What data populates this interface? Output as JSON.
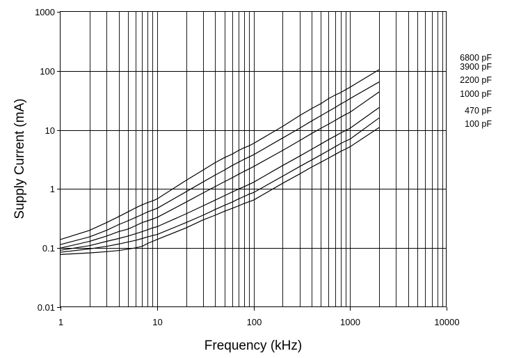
{
  "chart_data": {
    "type": "line",
    "title": "",
    "xlabel": "Frequency (kHz)",
    "ylabel": "Supply Current (mA)",
    "x_scale": "log",
    "y_scale": "log",
    "xlim": [
      1,
      10000
    ],
    "ylim": [
      0.01,
      1000
    ],
    "grid": true,
    "x_ticks": [
      1,
      10,
      100,
      1000,
      10000
    ],
    "y_ticks": [
      0.01,
      0.1,
      1,
      10,
      100,
      1000
    ],
    "x_tick_labels": [
      "1",
      "10",
      "100",
      "1000",
      "10000"
    ],
    "y_tick_labels": [
      "0.01",
      "0.1",
      "1",
      "10",
      "100",
      "1000"
    ],
    "x": [
      1,
      2,
      3,
      4,
      5,
      6,
      7,
      8,
      9,
      10,
      20,
      30,
      40,
      50,
      60,
      70,
      80,
      90,
      100,
      200,
      300,
      400,
      500,
      600,
      700,
      800,
      900,
      1000,
      2000
    ],
    "series": [
      {
        "name": "6800 pF",
        "values": [
          0.14,
          0.2,
          0.27,
          0.34,
          0.41,
          0.48,
          0.54,
          0.59,
          0.63,
          0.68,
          1.4,
          2.1,
          2.8,
          3.4,
          3.9,
          4.5,
          5.0,
          5.4,
          5.9,
          11.5,
          17.5,
          23,
          28,
          34,
          39,
          43,
          48,
          53,
          105
        ]
      },
      {
        "name": "3900 pF",
        "values": [
          0.115,
          0.155,
          0.2,
          0.25,
          0.29,
          0.33,
          0.37,
          0.41,
          0.44,
          0.47,
          0.9,
          1.32,
          1.72,
          2.1,
          2.5,
          2.85,
          3.2,
          3.5,
          3.8,
          7.3,
          10.7,
          14.2,
          17.5,
          20.8,
          24,
          27.5,
          30.5,
          34,
          65
        ]
      },
      {
        "name": "2200 pF",
        "values": [
          0.1,
          0.13,
          0.16,
          0.19,
          0.21,
          0.24,
          0.27,
          0.29,
          0.31,
          0.33,
          0.6,
          0.86,
          1.1,
          1.33,
          1.55,
          1.78,
          2.0,
          2.2,
          2.4,
          4.5,
          6.6,
          8.7,
          10.7,
          12.6,
          14.5,
          16.5,
          18.3,
          20,
          44
        ]
      },
      {
        "name": "1000 pF",
        "values": [
          0.092,
          0.11,
          0.13,
          0.145,
          0.16,
          0.175,
          0.19,
          0.205,
          0.22,
          0.23,
          0.38,
          0.52,
          0.65,
          0.77,
          0.89,
          1.0,
          1.1,
          1.2,
          1.3,
          2.5,
          3.6,
          4.7,
          5.8,
          6.9,
          7.9,
          8.9,
          9.8,
          10.7,
          24
        ]
      },
      {
        "name": "470 pF",
        "values": [
          0.085,
          0.097,
          0.107,
          0.117,
          0.127,
          0.135,
          0.145,
          0.155,
          0.163,
          0.17,
          0.27,
          0.36,
          0.45,
          0.53,
          0.6,
          0.68,
          0.75,
          0.82,
          0.87,
          1.65,
          2.4,
          3.1,
          3.8,
          4.5,
          5.2,
          5.9,
          6.5,
          7.0,
          16
        ]
      },
      {
        "name": "100 pF",
        "values": [
          0.078,
          0.083,
          0.087,
          0.091,
          0.096,
          0.101,
          0.107,
          0.12,
          0.13,
          0.14,
          0.22,
          0.3,
          0.36,
          0.42,
          0.47,
          0.52,
          0.57,
          0.61,
          0.65,
          1.25,
          1.8,
          2.35,
          2.85,
          3.35,
          3.85,
          4.35,
          4.75,
          5.2,
          11
        ]
      }
    ],
    "legend": "right"
  }
}
